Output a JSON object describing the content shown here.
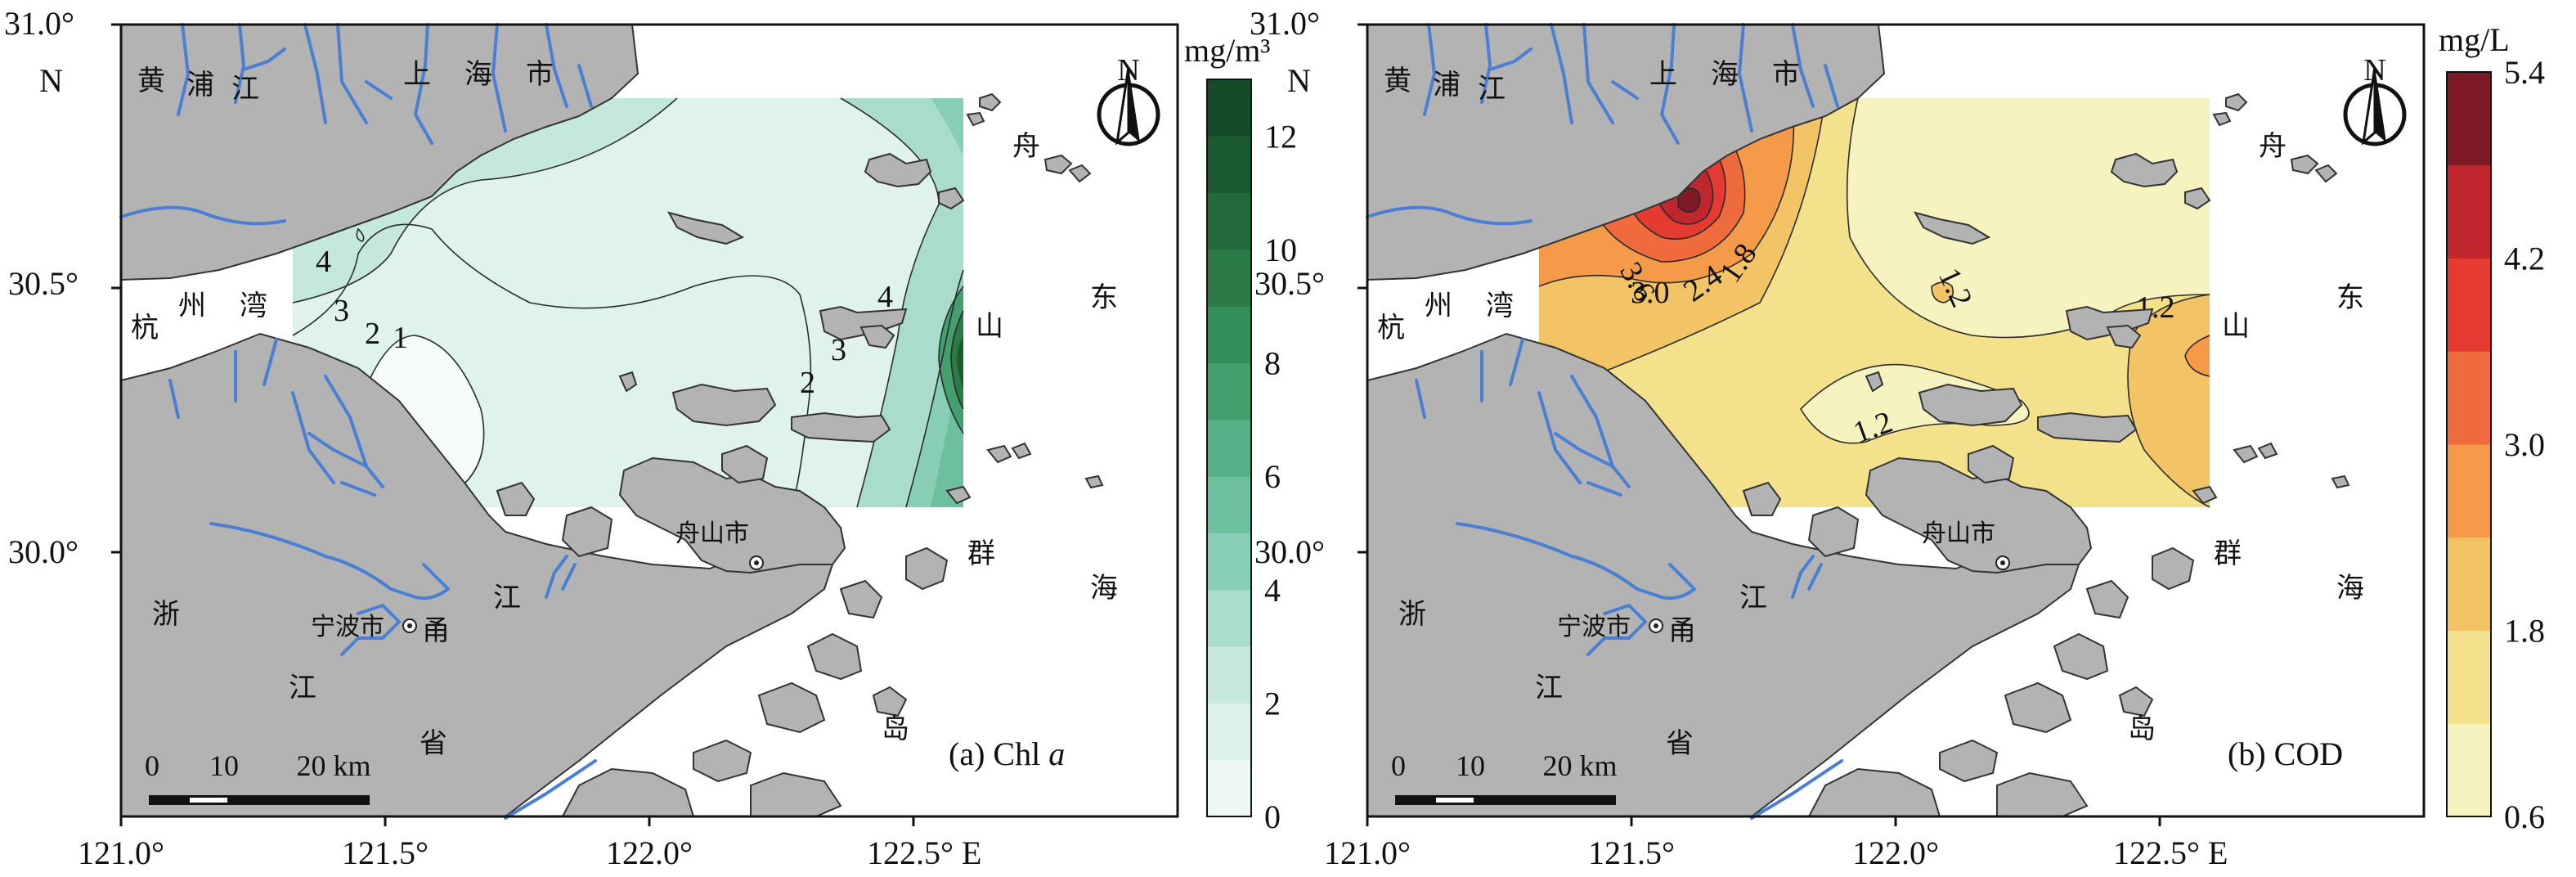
{
  "panels": [
    {
      "id": "a",
      "panel_label": "(a) Chl ",
      "panel_label_italic": "a",
      "unit": "mg/m³",
      "colorbar_ticks": [
        "0",
        "2",
        "4",
        "6",
        "8",
        "10",
        "12"
      ],
      "colorbar_colors": [
        "#eef8f5",
        "#dcf1eb",
        "#c6e8de",
        "#aadcce",
        "#88cdb6",
        "#6ebf9e",
        "#57b186",
        "#43a06e",
        "#348e5a",
        "#2b7a48",
        "#226a3b",
        "#1b5a31",
        "#154b28"
      ],
      "contour_labels": [
        "4",
        "3",
        "2",
        "1",
        "2",
        "3",
        "4"
      ],
      "lat_ticks": [
        "31.0°",
        "30.5°",
        "30.0°"
      ],
      "north_tick_label": "N",
      "lon_ticks": [
        "121.0°",
        "121.5°",
        "122.0°",
        "122.5° E"
      ],
      "place_names": {
        "huangpu": [
          "黄",
          "浦",
          "江"
        ],
        "shanghai": [
          "上",
          "海",
          "市"
        ],
        "hangzhouwan": [
          "杭",
          "州",
          "湾"
        ],
        "zhoushan_islands": [
          "舟",
          "山",
          "群",
          "岛"
        ],
        "donghai": [
          "东",
          "海"
        ],
        "zhejiang": [
          "浙",
          "江",
          "省"
        ],
        "zhoushan_city": "舟山市",
        "ningbo_city": "宁波市",
        "yong_river": [
          "甬",
          "江"
        ]
      },
      "scale_bar": [
        "0",
        "10",
        "20 km"
      ],
      "north_arrow": "N"
    },
    {
      "id": "b",
      "panel_label": "(b) COD",
      "panel_label_italic": "",
      "unit": "mg/L",
      "colorbar_ticks": [
        "0.6",
        "1.8",
        "3.0",
        "4.2",
        "5.4"
      ],
      "colorbar_colors": [
        "#f7f3c0",
        "#f3e18c",
        "#f3c466",
        "#f49a48",
        "#ef6a3c",
        "#e43a32",
        "#c0262e",
        "#7d1a26"
      ],
      "contour_labels": [
        "3.6",
        "3.0",
        "2.4",
        "1.8",
        "1.2",
        "1.2",
        "1.2"
      ],
      "lat_ticks": [
        "31.0°",
        "30.5°",
        "30.0°"
      ],
      "north_tick_label": "N",
      "lon_ticks": [
        "121.0°",
        "121.5°",
        "122.0°",
        "122.5° E"
      ],
      "place_names": {
        "huangpu": [
          "黄",
          "浦",
          "江"
        ],
        "shanghai": [
          "上",
          "海",
          "市"
        ],
        "hangzhouwan": [
          "杭",
          "州",
          "湾"
        ],
        "zhoushan_islands": [
          "舟",
          "山",
          "群",
          "岛"
        ],
        "donghai": [
          "东",
          "海"
        ],
        "zhejiang": [
          "浙",
          "江",
          "省"
        ],
        "zhoushan_city": "舟山市",
        "ningbo_city": "宁波市",
        "yong_river": [
          "甬",
          "江"
        ]
      },
      "scale_bar": [
        "0",
        "10",
        "20 km"
      ],
      "north_arrow": "N"
    }
  ],
  "colors": {
    "land": "#b3b3b3",
    "land_stroke": "#333333",
    "river": "#4a7fd4",
    "contour": "#2b2b2b",
    "frame": "#111111"
  }
}
